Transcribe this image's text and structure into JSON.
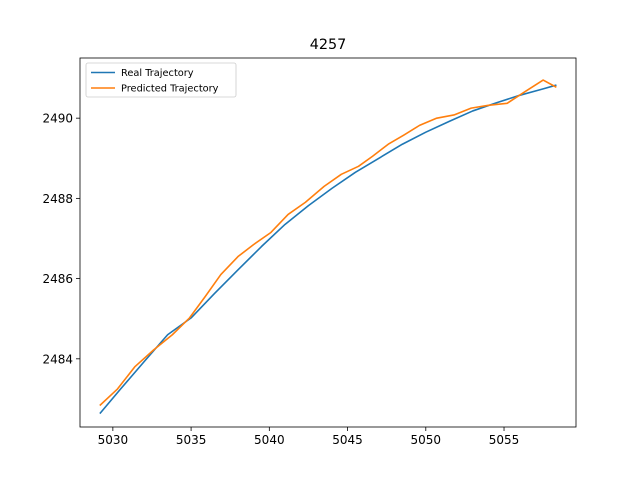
{
  "chart_data": {
    "type": "line",
    "title": "4257",
    "xlabel": "",
    "ylabel": "",
    "xlim": [
      5027.9,
      5059.6
    ],
    "ylim": [
      2482.3,
      2491.5
    ],
    "xticks": [
      5030,
      5035,
      5040,
      5045,
      5050,
      5055
    ],
    "yticks": [
      2484,
      2486,
      2488,
      2490
    ],
    "grid": false,
    "legend": "top-left",
    "series": [
      {
        "name": "Real Trajectory",
        "color": "#1f77b4",
        "x": [
          5029.2,
          5030.5,
          5032.0,
          5033.5,
          5035.0,
          5036.5,
          5038.0,
          5039.5,
          5041.0,
          5042.5,
          5044.0,
          5045.5,
          5047.0,
          5048.5,
          5050.0,
          5051.5,
          5053.0,
          5054.5,
          5056.0,
          5057.5,
          5058.3
        ],
        "y": [
          2482.65,
          2483.25,
          2483.93,
          2484.6,
          2485.02,
          2485.63,
          2486.22,
          2486.8,
          2487.35,
          2487.82,
          2488.25,
          2488.65,
          2489.0,
          2489.35,
          2489.65,
          2489.92,
          2490.18,
          2490.38,
          2490.57,
          2490.73,
          2490.82
        ]
      },
      {
        "name": "Predicted Trajectory",
        "color": "#ff7f0e",
        "x": [
          5029.2,
          5030.3,
          5031.4,
          5032.6,
          5033.8,
          5034.9,
          5035.9,
          5036.9,
          5038.0,
          5039.0,
          5040.1,
          5041.2,
          5042.3,
          5043.5,
          5044.6,
          5045.7,
          5046.6,
          5047.6,
          5048.6,
          5049.6,
          5050.7,
          5051.8,
          5052.9,
          5054.0,
          5055.2,
          5056.3,
          5057.5,
          5058.3
        ],
        "y": [
          2482.85,
          2483.25,
          2483.8,
          2484.22,
          2484.6,
          2485.02,
          2485.55,
          2486.1,
          2486.55,
          2486.85,
          2487.15,
          2487.6,
          2487.9,
          2488.3,
          2488.6,
          2488.8,
          2489.05,
          2489.35,
          2489.58,
          2489.82,
          2490.0,
          2490.08,
          2490.25,
          2490.32,
          2490.37,
          2490.65,
          2490.95,
          2490.78
        ]
      }
    ]
  }
}
